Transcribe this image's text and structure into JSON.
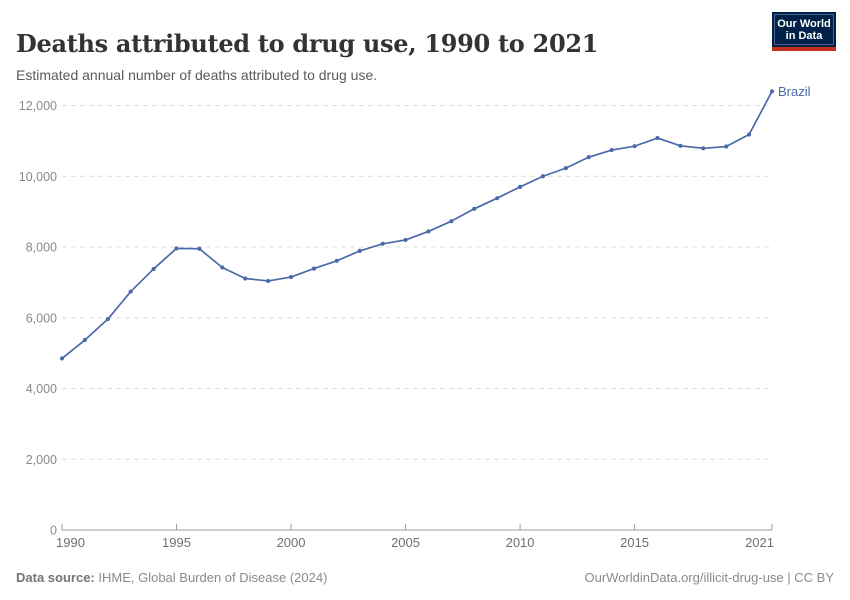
{
  "header": {
    "title": "Deaths attributed to drug use, 1990 to 2021",
    "subtitle": "Estimated annual number of deaths attributed to drug use."
  },
  "logo": {
    "line1": "Our World",
    "line2": "in Data",
    "bg_color": "#002147",
    "accent_color": "#C5301F"
  },
  "footer": {
    "datasource_label": "Data source:",
    "datasource_text": " IHME, Global Burden of Disease (2024)",
    "license_text": "OurWorldinData.org/illicit-drug-use | CC BY"
  },
  "chart_data": {
    "type": "line",
    "title": "Deaths attributed to drug use, 1990 to 2021",
    "xlabel": "",
    "ylabel": "",
    "xlim": [
      1990,
      2021
    ],
    "ylim": [
      0,
      12000
    ],
    "grid": "horizontal-dashed",
    "legend_position": "end-of-line-label",
    "x": [
      1990,
      1991,
      1992,
      1993,
      1994,
      1995,
      1996,
      1997,
      1998,
      1999,
      2000,
      2001,
      2002,
      2003,
      2004,
      2005,
      2006,
      2007,
      2008,
      2009,
      2010,
      2011,
      2012,
      2013,
      2014,
      2015,
      2016,
      2017,
      2018,
      2019,
      2020,
      2021
    ],
    "series": [
      {
        "name": "Brazil",
        "color": "#4A69A8",
        "values": [
          4850,
          5370,
          5960,
          6740,
          7380,
          7960,
          7950,
          7420,
          7110,
          7040,
          7150,
          7390,
          7610,
          7890,
          8090,
          8200,
          8440,
          8730,
          9080,
          9380,
          9700,
          10000,
          10230,
          10540,
          10740,
          10850,
          11080,
          10860,
          10790,
          10840,
          11180,
          12400
        ]
      }
    ],
    "x_ticks": [
      {
        "value": 1990,
        "label": "1990"
      },
      {
        "value": 1995,
        "label": "1995"
      },
      {
        "value": 2000,
        "label": "2000"
      },
      {
        "value": 2005,
        "label": "2005"
      },
      {
        "value": 2010,
        "label": "2010"
      },
      {
        "value": 2015,
        "label": "2015"
      },
      {
        "value": 2021,
        "label": "2021"
      }
    ],
    "y_ticks": [
      {
        "value": 0,
        "label": "0"
      },
      {
        "value": 2000,
        "label": "2,000"
      },
      {
        "value": 4000,
        "label": "4,000"
      },
      {
        "value": 6000,
        "label": "6,000"
      },
      {
        "value": 8000,
        "label": "8,000"
      },
      {
        "value": 10000,
        "label": "10,000"
      },
      {
        "value": 12000,
        "label": "12,000"
      }
    ],
    "colors": {
      "line": "#4A69A8",
      "grid": "#dcdcdc",
      "axis": "#9e9e9e",
      "y_label": "#8a8a8a",
      "x_label": "#6f6f6f"
    }
  }
}
